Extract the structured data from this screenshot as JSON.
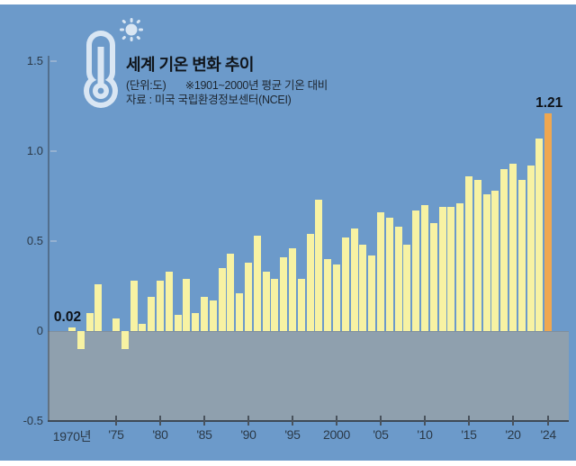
{
  "header": {
    "title": "세계 기온 변화 추이",
    "unit_label": "(단위:도)",
    "baseline_note": "※1901~2000년 평균 기온 대비",
    "source": "자료 : 미국 국립환경정보센터(NCEI)",
    "icons": [
      "thermometer-icon",
      "sun-icon"
    ]
  },
  "chart_data": {
    "type": "bar",
    "title": "세계 기온 변화 추이",
    "unit": "도(°C)",
    "baseline": "1901~2000년 평균 기온 대비",
    "source": "미국 국립환경정보센터(NCEI)",
    "years": [
      1970,
      1971,
      1972,
      1973,
      1974,
      1975,
      1976,
      1977,
      1978,
      1979,
      1980,
      1981,
      1982,
      1983,
      1984,
      1985,
      1986,
      1987,
      1988,
      1989,
      1990,
      1991,
      1992,
      1993,
      1994,
      1995,
      1996,
      1997,
      1998,
      1999,
      2000,
      2001,
      2002,
      2003,
      2004,
      2005,
      2006,
      2007,
      2008,
      2009,
      2010,
      2011,
      2012,
      2013,
      2014,
      2015,
      2016,
      2017,
      2018,
      2019,
      2020,
      2021,
      2022,
      2023,
      2024
    ],
    "values": [
      0.02,
      -0.1,
      0.1,
      0.26,
      0.0,
      0.07,
      -0.1,
      0.28,
      0.04,
      0.19,
      0.28,
      0.33,
      0.09,
      0.29,
      0.1,
      0.19,
      0.17,
      0.35,
      0.43,
      0.21,
      0.38,
      0.53,
      0.33,
      0.29,
      0.41,
      0.46,
      0.29,
      0.54,
      0.73,
      0.4,
      0.37,
      0.52,
      0.57,
      0.48,
      0.42,
      0.66,
      0.63,
      0.58,
      0.48,
      0.67,
      0.7,
      0.6,
      0.69,
      0.69,
      0.71,
      0.86,
      0.84,
      0.76,
      0.78,
      0.9,
      0.93,
      0.84,
      0.92,
      1.07,
      1.21
    ],
    "highlight_year": 2024,
    "ylim": [
      -0.5,
      1.5
    ],
    "yticks": [
      {
        "value": 1.5,
        "label": "1.5",
        "dash": true
      },
      {
        "value": 1.0,
        "label": "1.0",
        "dash": true
      },
      {
        "value": 0.5,
        "label": "0.5",
        "dash": true
      },
      {
        "value": 0,
        "label": "0",
        "dash": false
      },
      {
        "value": -0.5,
        "label": "-0.5",
        "dash": false
      }
    ],
    "xticks": [
      {
        "year": 1970,
        "label": "1970년",
        "tick": false
      },
      {
        "year": 1975,
        "label": "'75",
        "tick": true
      },
      {
        "year": 1980,
        "label": "'80",
        "tick": true
      },
      {
        "year": 1985,
        "label": "'85",
        "tick": true
      },
      {
        "year": 1990,
        "label": "'90",
        "tick": true
      },
      {
        "year": 1995,
        "label": "'95",
        "tick": true
      },
      {
        "year": 2000,
        "label": "2000",
        "tick": true
      },
      {
        "year": 2005,
        "label": "'05",
        "tick": true
      },
      {
        "year": 2010,
        "label": "'10",
        "tick": true
      },
      {
        "year": 2015,
        "label": "'15",
        "tick": true
      },
      {
        "year": 2020,
        "label": "'20",
        "tick": true
      },
      {
        "year": 2024,
        "label": "'24",
        "tick": true
      }
    ],
    "annotations": [
      {
        "year": 1970,
        "text": "0.02",
        "dx": -5
      },
      {
        "year": 2024,
        "text": "1.21",
        "dx": 1
      }
    ],
    "colors": {
      "background": "#6c9aca",
      "bar": "#f7f2a3",
      "highlight_bar": "#efa750",
      "below_zero_band": "#8fa0ae",
      "axis": "#3e4a57",
      "label_text": "#2b3947",
      "annotation_text": "#0d1116",
      "icon": "#d9e6f3"
    },
    "grid": false,
    "legend": false
  }
}
